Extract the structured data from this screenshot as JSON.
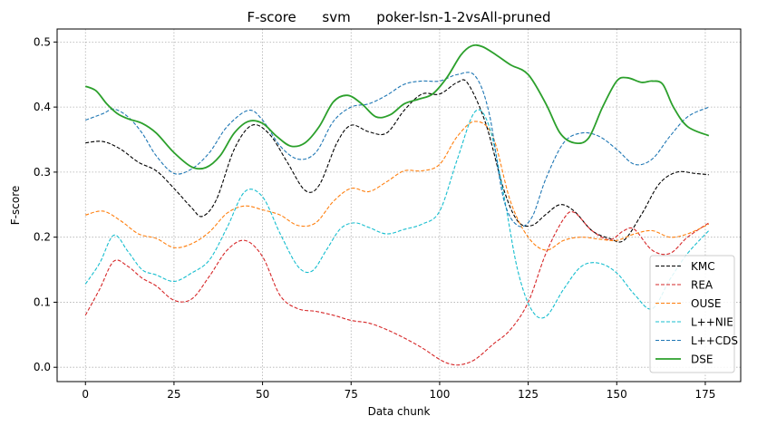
{
  "chart_data": {
    "type": "line",
    "title": "F-score      svm      poker-lsn-1-2vsAll-pruned",
    "xlabel": "Data chunk",
    "ylabel": "F-score",
    "xlim": [
      -8,
      185
    ],
    "ylim": [
      -0.022,
      0.52
    ],
    "xticks": [
      0,
      25,
      50,
      75,
      100,
      125,
      150,
      175
    ],
    "yticks": [
      0.0,
      0.1,
      0.2,
      0.3,
      0.4,
      0.5
    ],
    "ytick_labels": [
      "0.0",
      "0.1",
      "0.2",
      "0.3",
      "0.4",
      "0.5"
    ],
    "grid": true,
    "legend_position": "lower-right",
    "series": [
      {
        "name": "KMC",
        "color": "#000000",
        "style": "dashed",
        "x": [
          0,
          5,
          10,
          15,
          20,
          25,
          30,
          33,
          37,
          42,
          47,
          52,
          57,
          62,
          66,
          71,
          75,
          80,
          85,
          90,
          95,
          100,
          105,
          108,
          113,
          118,
          122,
          126,
          130,
          134,
          138,
          143,
          148,
          152,
          157,
          162,
          167,
          172,
          176
        ],
        "y": [
          0.345,
          0.347,
          0.335,
          0.315,
          0.302,
          0.275,
          0.245,
          0.232,
          0.258,
          0.335,
          0.372,
          0.358,
          0.315,
          0.272,
          0.28,
          0.345,
          0.372,
          0.362,
          0.36,
          0.395,
          0.42,
          0.42,
          0.438,
          0.436,
          0.375,
          0.275,
          0.225,
          0.218,
          0.235,
          0.25,
          0.24,
          0.21,
          0.198,
          0.195,
          0.235,
          0.282,
          0.3,
          0.298,
          0.296
        ]
      },
      {
        "name": "REA",
        "color": "#d62728",
        "style": "dashed",
        "x": [
          0,
          4,
          8,
          12,
          16,
          20,
          25,
          30,
          35,
          40,
          45,
          50,
          55,
          60,
          65,
          70,
          75,
          80,
          85,
          90,
          95,
          100,
          103,
          106,
          110,
          115,
          120,
          125,
          130,
          135,
          138,
          143,
          148,
          152,
          155,
          160,
          165,
          170,
          176
        ],
        "y": [
          0.08,
          0.12,
          0.163,
          0.155,
          0.137,
          0.125,
          0.103,
          0.105,
          0.14,
          0.18,
          0.195,
          0.17,
          0.11,
          0.09,
          0.086,
          0.08,
          0.072,
          0.068,
          0.058,
          0.045,
          0.03,
          0.012,
          0.005,
          0.004,
          0.012,
          0.035,
          0.058,
          0.1,
          0.175,
          0.228,
          0.238,
          0.21,
          0.196,
          0.21,
          0.212,
          0.18,
          0.175,
          0.2,
          0.222
        ]
      },
      {
        "name": "OUSE",
        "color": "#ff7f0e",
        "style": "dashed",
        "x": [
          0,
          5,
          10,
          15,
          20,
          25,
          30,
          35,
          40,
          45,
          50,
          55,
          60,
          65,
          70,
          75,
          80,
          85,
          90,
          95,
          100,
          105,
          110,
          115,
          120,
          125,
          130,
          135,
          140,
          145,
          150,
          155,
          160,
          165,
          170,
          176
        ],
        "y": [
          0.234,
          0.24,
          0.225,
          0.205,
          0.198,
          0.184,
          0.19,
          0.208,
          0.237,
          0.248,
          0.242,
          0.234,
          0.218,
          0.222,
          0.255,
          0.275,
          0.27,
          0.285,
          0.302,
          0.302,
          0.312,
          0.355,
          0.378,
          0.355,
          0.255,
          0.2,
          0.18,
          0.195,
          0.2,
          0.197,
          0.195,
          0.205,
          0.21,
          0.2,
          0.205,
          0.22
        ]
      },
      {
        "name": "L++NIE",
        "color": "#17becf",
        "style": "dashed",
        "x": [
          0,
          4,
          8,
          12,
          16,
          20,
          25,
          30,
          35,
          40,
          45,
          50,
          55,
          60,
          64,
          68,
          72,
          76,
          80,
          85,
          90,
          95,
          100,
          105,
          110,
          114,
          118,
          122,
          126,
          130,
          135,
          140,
          145,
          150,
          155,
          160,
          165,
          170,
          176
        ],
        "y": [
          0.128,
          0.16,
          0.203,
          0.178,
          0.15,
          0.142,
          0.132,
          0.145,
          0.165,
          0.215,
          0.27,
          0.262,
          0.205,
          0.155,
          0.148,
          0.18,
          0.213,
          0.222,
          0.215,
          0.205,
          0.212,
          0.22,
          0.24,
          0.32,
          0.393,
          0.37,
          0.268,
          0.15,
          0.088,
          0.078,
          0.12,
          0.155,
          0.16,
          0.145,
          0.112,
          0.09,
          0.135,
          0.175,
          0.21
        ]
      },
      {
        "name": "L++CDS",
        "color": "#1f77b4",
        "style": "dashed",
        "x": [
          0,
          5,
          8,
          12,
          16,
          20,
          25,
          30,
          35,
          40,
          46,
          50,
          55,
          60,
          65,
          70,
          75,
          80,
          85,
          90,
          95,
          100,
          105,
          110,
          114,
          118,
          122,
          126,
          130,
          135,
          140,
          145,
          150,
          155,
          160,
          165,
          170,
          176
        ],
        "y": [
          0.38,
          0.39,
          0.397,
          0.385,
          0.36,
          0.325,
          0.298,
          0.305,
          0.33,
          0.37,
          0.395,
          0.38,
          0.34,
          0.32,
          0.33,
          0.378,
          0.4,
          0.405,
          0.418,
          0.435,
          0.44,
          0.44,
          0.45,
          0.448,
          0.39,
          0.26,
          0.218,
          0.23,
          0.29,
          0.345,
          0.36,
          0.355,
          0.335,
          0.312,
          0.32,
          0.355,
          0.385,
          0.4
        ]
      },
      {
        "name": "DSE",
        "color": "#2ca02c",
        "style": "solid",
        "x": [
          0,
          3,
          6,
          9,
          12,
          16,
          20,
          25,
          30,
          34,
          38,
          42,
          46,
          50,
          54,
          58,
          62,
          66,
          70,
          74,
          78,
          82,
          86,
          90,
          94,
          98,
          102,
          106,
          109,
          112,
          116,
          120,
          125,
          130,
          134,
          138,
          142,
          146,
          150,
          153,
          157,
          160,
          163,
          166,
          170,
          176
        ],
        "y": [
          0.432,
          0.425,
          0.405,
          0.39,
          0.382,
          0.375,
          0.36,
          0.33,
          0.308,
          0.307,
          0.325,
          0.36,
          0.378,
          0.375,
          0.355,
          0.34,
          0.345,
          0.37,
          0.408,
          0.418,
          0.405,
          0.385,
          0.388,
          0.405,
          0.412,
          0.42,
          0.445,
          0.48,
          0.494,
          0.493,
          0.48,
          0.465,
          0.45,
          0.405,
          0.36,
          0.345,
          0.352,
          0.4,
          0.44,
          0.445,
          0.438,
          0.44,
          0.435,
          0.4,
          0.37,
          0.356
        ]
      }
    ]
  }
}
